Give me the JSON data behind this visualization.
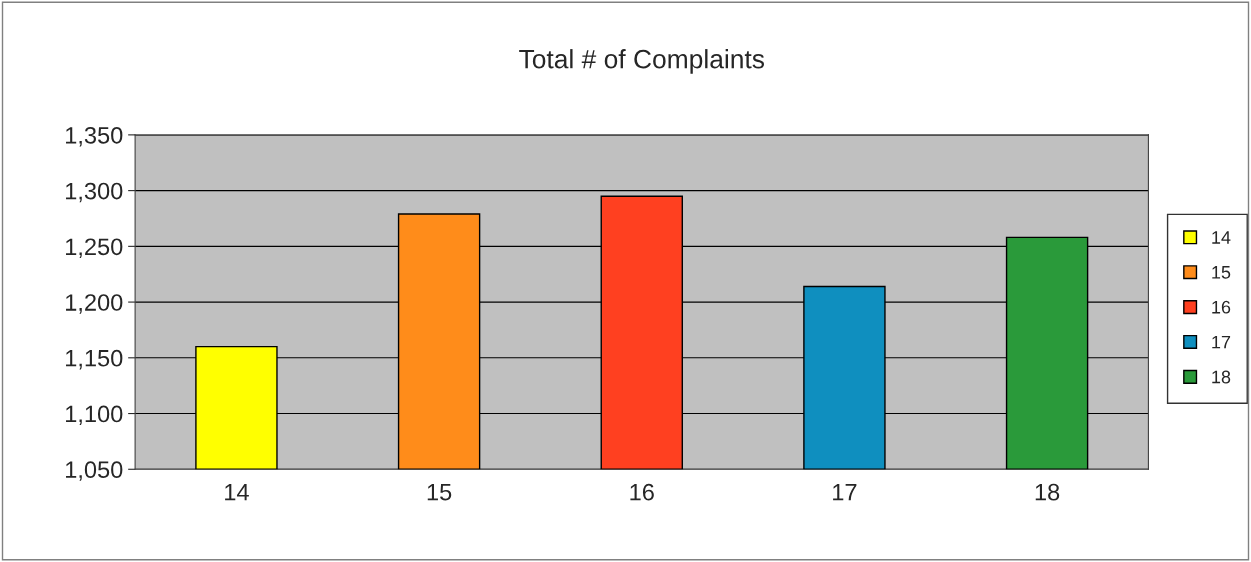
{
  "chart_data": {
    "type": "bar",
    "title": "Total # of Complaints",
    "categories": [
      "14",
      "15",
      "16",
      "17",
      "18"
    ],
    "series": [
      {
        "name": "14",
        "color": "#ffff00",
        "values": [
          1160,
          null,
          null,
          null,
          null
        ]
      },
      {
        "name": "15",
        "color": "#ff8c1a",
        "values": [
          null,
          1279,
          null,
          null,
          null
        ]
      },
      {
        "name": "16",
        "color": "#ff4020",
        "values": [
          null,
          null,
          1295,
          null,
          null
        ]
      },
      {
        "name": "17",
        "color": "#0f8fbf",
        "values": [
          null,
          null,
          null,
          1214,
          null
        ]
      },
      {
        "name": "18",
        "color": "#2a9a3a",
        "values": [
          null,
          null,
          null,
          null,
          1258
        ]
      }
    ],
    "ylim": [
      1050,
      1350
    ],
    "yticks": [
      {
        "value": 1050,
        "label": "1,050"
      },
      {
        "value": 1100,
        "label": "1,100"
      },
      {
        "value": 1150,
        "label": "1,150"
      },
      {
        "value": 1200,
        "label": "1,200"
      },
      {
        "value": 1250,
        "label": "1,250"
      },
      {
        "value": 1300,
        "label": "1,300"
      },
      {
        "value": 1350,
        "label": "1,350"
      }
    ],
    "grid": "y",
    "legend": "right"
  }
}
